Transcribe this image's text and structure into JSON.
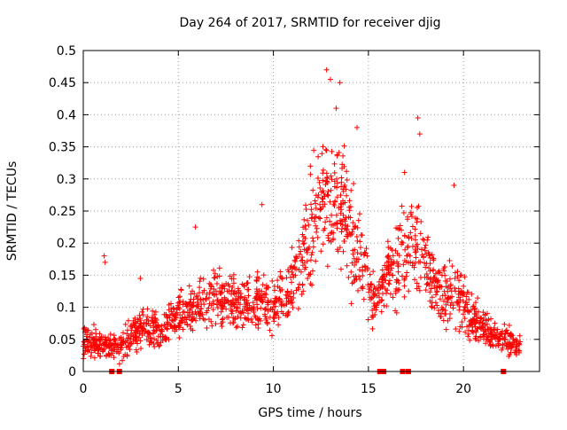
{
  "chart_data": {
    "type": "scatter",
    "title": "Day 264 of 2017, SRMTID for receiver djig",
    "xlabel": "GPS time / hours",
    "ylabel": "SRMTID / TECUs",
    "xlim": [
      0,
      24
    ],
    "ylim": [
      0,
      0.5
    ],
    "x_ticks": [
      0,
      5,
      10,
      15,
      20
    ],
    "x_tick_labels": [
      "0",
      "5",
      "10",
      "15",
      "20"
    ],
    "y_ticks": [
      0,
      0.05,
      0.1,
      0.15,
      0.2,
      0.25,
      0.3,
      0.35,
      0.4,
      0.45,
      0.5
    ],
    "y_tick_labels": [
      "0",
      "0.05",
      "0.1",
      "0.15",
      "0.2",
      "0.25",
      "0.3",
      "0.35",
      "0.4",
      "0.45",
      "0.5"
    ],
    "grid": true,
    "marker": "+",
    "series_color": "#ff0000",
    "envelope": {
      "description": "approximate typical SRMTID level (TECU) vs GPS hour, estimated from the point cloud",
      "hours": [
        0,
        1,
        2,
        2.5,
        3,
        4,
        5,
        6,
        7,
        8,
        9,
        10,
        11,
        11.5,
        12,
        12.5,
        13,
        13.5,
        14,
        14.5,
        15,
        15.5,
        16,
        16.5,
        17,
        17.5,
        18,
        18.5,
        19,
        19.5,
        20,
        20.5,
        21,
        21.5,
        22,
        22.5,
        23
      ],
      "center": [
        0.05,
        0.04,
        0.035,
        0.06,
        0.07,
        0.06,
        0.09,
        0.1,
        0.12,
        0.1,
        0.11,
        0.1,
        0.13,
        0.17,
        0.22,
        0.26,
        0.28,
        0.27,
        0.22,
        0.18,
        0.13,
        0.11,
        0.15,
        0.16,
        0.19,
        0.2,
        0.18,
        0.14,
        0.12,
        0.14,
        0.1,
        0.08,
        0.07,
        0.06,
        0.05,
        0.045,
        0.04
      ],
      "spread": [
        0.025,
        0.02,
        0.02,
        0.025,
        0.03,
        0.025,
        0.03,
        0.035,
        0.04,
        0.035,
        0.04,
        0.04,
        0.05,
        0.06,
        0.08,
        0.09,
        0.09,
        0.09,
        0.08,
        0.06,
        0.04,
        0.04,
        0.05,
        0.06,
        0.07,
        0.07,
        0.06,
        0.05,
        0.05,
        0.05,
        0.04,
        0.03,
        0.03,
        0.025,
        0.02,
        0.02,
        0.015
      ]
    },
    "notable_points": [
      {
        "x": 12.8,
        "y": 0.47
      },
      {
        "x": 13.0,
        "y": 0.455
      },
      {
        "x": 13.5,
        "y": 0.45
      },
      {
        "x": 13.3,
        "y": 0.41
      },
      {
        "x": 17.6,
        "y": 0.395
      },
      {
        "x": 17.7,
        "y": 0.37
      },
      {
        "x": 14.4,
        "y": 0.38
      },
      {
        "x": 16.9,
        "y": 0.31
      },
      {
        "x": 9.4,
        "y": 0.26
      },
      {
        "x": 19.5,
        "y": 0.29
      },
      {
        "x": 5.9,
        "y": 0.225
      },
      {
        "x": 1.1,
        "y": 0.18
      },
      {
        "x": 1.15,
        "y": 0.17
      },
      {
        "x": 3.0,
        "y": 0.145
      }
    ],
    "zero_points_x": [
      1.5,
      1.9,
      15.6,
      15.8,
      16.8,
      17.1,
      22.1
    ]
  }
}
